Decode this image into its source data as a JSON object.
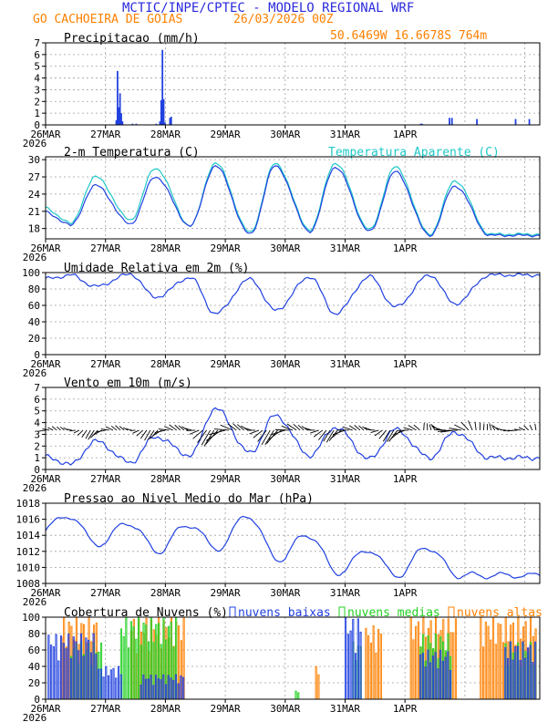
{
  "header": {
    "title": "MCTIC/INPE/CPTEC - MODELO REGIONAL WRF",
    "location": "GO CACHOEIRA DE GOIAS",
    "run": "26/03/2026 00Z",
    "coords": "50.6469W 16.6678S 764m"
  },
  "colors": {
    "title": "#2a2adc",
    "orange": "#ff8000",
    "cyan": "#20c8c8",
    "blue": "#2040e0",
    "green": "#20d020",
    "grid": "#a0a0a0"
  },
  "x_axis": {
    "ticks": [
      "26MAR",
      "27MAR",
      "28MAR",
      "29MAR",
      "30MAR",
      "31MAR",
      "1APR"
    ],
    "year": "2026"
  },
  "chart_data": [
    {
      "id": "precip",
      "type": "bar",
      "title": "Precipitacao (mm/h)",
      "ylim": [
        0,
        7
      ],
      "yticks": [
        "0",
        "1",
        "2",
        "3",
        "4",
        "5",
        "6",
        "7"
      ],
      "events": [
        {
          "t": 28.0,
          "v": 0.4
        },
        {
          "t": 28.5,
          "v": 4.6
        },
        {
          "t": 29.0,
          "v": 1.5
        },
        {
          "t": 29.5,
          "v": 2.7
        },
        {
          "t": 30.0,
          "v": 1.0
        },
        {
          "t": 30.5,
          "v": 0.3
        },
        {
          "t": 34.5,
          "v": 0.1
        },
        {
          "t": 36.0,
          "v": 0.1
        },
        {
          "t": 44.0,
          "v": 0.1
        },
        {
          "t": 45.5,
          "v": 0.3
        },
        {
          "t": 46.0,
          "v": 2.1
        },
        {
          "t": 46.5,
          "v": 6.4
        },
        {
          "t": 47.0,
          "v": 2.2
        },
        {
          "t": 47.5,
          "v": 0.2
        },
        {
          "t": 49.5,
          "v": 0.6
        },
        {
          "t": 50.0,
          "v": 0.7
        },
        {
          "t": 150.0,
          "v": 0.1
        },
        {
          "t": 150.5,
          "v": 0.1
        },
        {
          "t": 161.5,
          "v": 0.6
        },
        {
          "t": 162.5,
          "v": 0.6
        },
        {
          "t": 172.5,
          "v": 0.5
        },
        {
          "t": 188.0,
          "v": 0.5
        },
        {
          "t": 193.5,
          "v": 0.5
        }
      ]
    },
    {
      "id": "temp",
      "type": "line",
      "title": "2-m Temperatura (C)",
      "title2": "Temperatura Aparente (C)",
      "ylim": [
        16.2,
        30.5
      ],
      "yticks": [
        "18",
        "21",
        "24",
        "27",
        "30"
      ],
      "yvals": [
        18,
        21,
        24,
        27,
        30
      ],
      "daily": [
        {
          "min": 18.5,
          "max": 25.5,
          "amin": 18.8,
          "amax": 27.0
        },
        {
          "min": 18.8,
          "max": 27.0,
          "amin": 19.5,
          "amax": 28.5
        },
        {
          "min": 18.5,
          "max": 28.9,
          "amin": 18.5,
          "amax": 29.4
        },
        {
          "min": 17.0,
          "max": 28.9,
          "amin": 17.3,
          "amax": 29.3
        },
        {
          "min": 17.5,
          "max": 28.7,
          "amin": 17.8,
          "amax": 29.4
        },
        {
          "min": 17.5,
          "max": 27.9,
          "amin": 17.8,
          "amax": 28.7
        },
        {
          "min": 16.8,
          "max": 25.4,
          "amin": 17.0,
          "amax": 26.3
        }
      ]
    },
    {
      "id": "rh",
      "type": "line",
      "title": "Umidade Relativa em 2m (%)",
      "ylim": [
        0,
        100
      ],
      "yticks": [
        "0",
        "20",
        "40",
        "60",
        "80",
        "100"
      ],
      "yvals": [
        0,
        20,
        40,
        60,
        80,
        100
      ],
      "daily": [
        {
          "max": 97,
          "min": 83
        },
        {
          "max": 98,
          "min": 70
        },
        {
          "max": 94,
          "min": 50
        },
        {
          "max": 92,
          "min": 54
        },
        {
          "max": 95,
          "min": 50
        },
        {
          "max": 95,
          "min": 58
        },
        {
          "max": 97,
          "min": 62
        }
      ]
    },
    {
      "id": "wind",
      "type": "line",
      "title": "Vento em 10m (m/s)",
      "ylim": [
        0,
        7
      ],
      "yticks": [
        "0",
        "1",
        "2",
        "3",
        "4",
        "5",
        "6",
        "7"
      ],
      "yvals": [
        0,
        1,
        2,
        3,
        4,
        5,
        6,
        7
      ],
      "daily": [
        {
          "min": 0.4,
          "max": 2.4
        },
        {
          "min": 0.6,
          "max": 2.8
        },
        {
          "min": 1.2,
          "max": 5.2
        },
        {
          "min": 1.4,
          "max": 4.6
        },
        {
          "min": 1.2,
          "max": 3.6
        },
        {
          "min": 0.9,
          "max": 3.4
        },
        {
          "min": 1.0,
          "max": 3.2
        }
      ]
    },
    {
      "id": "slp",
      "type": "line",
      "title": "Pressao ao Nivel Medio do Mar (hPa)",
      "ylim": [
        1008,
        1018
      ],
      "yticks": [
        "1008",
        "1010",
        "1012",
        "1014",
        "1016",
        "1018"
      ],
      "yvals": [
        1008,
        1010,
        1012,
        1014,
        1016,
        1018
      ],
      "daily": [
        {
          "max": 1016.6,
          "min": 1014.2
        },
        {
          "max": 1015.8,
          "min": 1012.6
        },
        {
          "max": 1015.6,
          "min": 1011.8
        },
        {
          "max": 1016.8,
          "min": 1012.2
        },
        {
          "max": 1014.4,
          "min": 1010.6
        },
        {
          "max": 1012.4,
          "min": 1009.0
        },
        {
          "max": 1012.8,
          "min": 1008.8
        }
      ]
    },
    {
      "id": "cloud",
      "type": "bar",
      "title": "Cobertura de Nuvens (%)",
      "legend": [
        "nuvens baixas",
        "nuvens medias",
        "nuvens altas"
      ],
      "ylim": [
        0,
        100
      ],
      "yticks": [
        "0",
        "20",
        "40",
        "60",
        "80",
        "100"
      ],
      "yvals": [
        0,
        20,
        40,
        60,
        80,
        100
      ],
      "low": [
        {
          "a": 1,
          "b": 20,
          "v": 80
        },
        {
          "a": 21,
          "b": 30,
          "v": 40
        },
        {
          "a": 38,
          "b": 55,
          "v": 30
        },
        {
          "a": 120,
          "b": 126,
          "v": 100
        },
        {
          "a": 150,
          "b": 162,
          "v": 60
        },
        {
          "a": 184,
          "b": 196,
          "v": 70
        }
      ],
      "mid": [
        {
          "a": 10,
          "b": 22,
          "v": 70
        },
        {
          "a": 30,
          "b": 52,
          "v": 100
        },
        {
          "a": 100,
          "b": 101,
          "v": 10
        },
        {
          "a": 123,
          "b": 126,
          "v": 70
        },
        {
          "a": 150,
          "b": 162,
          "v": 80
        },
        {
          "a": 184,
          "b": 196,
          "v": 70
        }
      ],
      "high": [
        {
          "a": 6,
          "b": 20,
          "v": 100
        },
        {
          "a": 34,
          "b": 55,
          "v": 100
        },
        {
          "a": 108,
          "b": 109,
          "v": 40
        },
        {
          "a": 128,
          "b": 134,
          "v": 90
        },
        {
          "a": 146,
          "b": 164,
          "v": 100
        },
        {
          "a": 174,
          "b": 196,
          "v": 100
        }
      ]
    }
  ]
}
